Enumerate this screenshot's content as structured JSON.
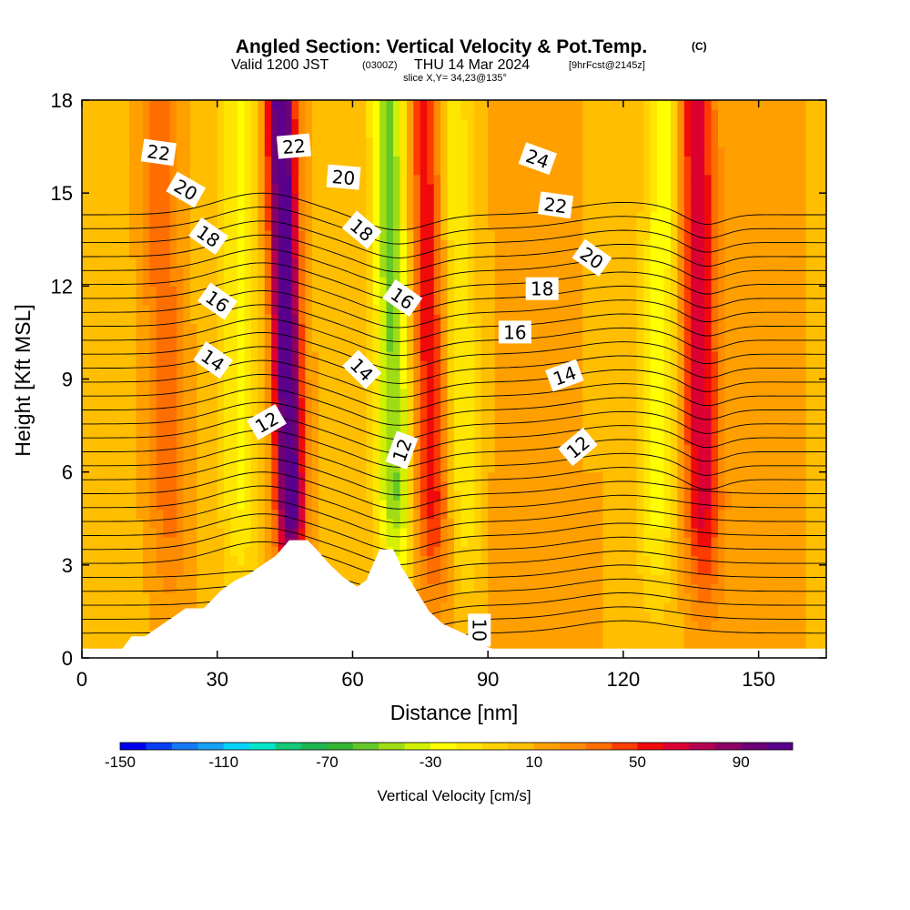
{
  "chart_data": {
    "type": "heatmap",
    "title_main": "Angled Section: Vertical Velocity & Pot.Temp.",
    "title_copyright": "(C)",
    "subtitle_parts": [
      "Valid 1200 JST",
      "(0300Z)",
      "THU 14 Mar 2024",
      "[9hrFcst@2145z]"
    ],
    "slice_text": "slice X,Y= 34,23@135°",
    "xlabel": "Distance [nm]",
    "ylabel": "Height [Kft MSL]",
    "xlim": [
      0,
      165
    ],
    "ylim": [
      0,
      18
    ],
    "x_ticks": [
      0,
      30,
      60,
      90,
      120,
      150
    ],
    "y_ticks": [
      0,
      3,
      6,
      9,
      12,
      15,
      18
    ],
    "colorbar": {
      "title": "Vertical Velocity [cm/s]",
      "min": -150,
      "max": 110,
      "tick_labels": [
        -150,
        -110,
        -70,
        -30,
        10,
        50,
        90
      ],
      "colors": [
        "#0000ee",
        "#0a3cf5",
        "#1478f5",
        "#14a0f5",
        "#00d2fa",
        "#00e6c8",
        "#14c878",
        "#1eb450",
        "#32b432",
        "#64c828",
        "#a0dc14",
        "#d2f000",
        "#ffff00",
        "#ffe600",
        "#ffd200",
        "#ffbe00",
        "#ffa000",
        "#ff8c00",
        "#ff6e00",
        "#ff3c00",
        "#f00a0a",
        "#dc0032",
        "#b40050",
        "#8c0064",
        "#6e0078",
        "#5a008c"
      ]
    },
    "updraft_bands": [
      {
        "x_bottom": 47,
        "x_top": 44,
        "peak": 110
      },
      {
        "x_bottom": 78,
        "x_top": 76,
        "peak": 50
      },
      {
        "x_bottom": 138,
        "x_top": 136,
        "peak": 60
      },
      {
        "x_bottom": 20,
        "x_top": 17,
        "peak": 30
      }
    ],
    "downdraft_bands": [
      {
        "x_bottom": 70,
        "x_top": 68,
        "peak": -60
      },
      {
        "x_bottom": 35,
        "x_top": 35,
        "peak": -30
      },
      {
        "x_bottom": 86,
        "x_top": 82,
        "peak": -30
      },
      {
        "x_bottom": 127,
        "x_top": 129,
        "peak": -35
      }
    ],
    "terrain_profile": [
      [
        0,
        0.3
      ],
      [
        9,
        0.3
      ],
      [
        11,
        0.7
      ],
      [
        14,
        0.7
      ],
      [
        17,
        1.0
      ],
      [
        20,
        1.3
      ],
      [
        23,
        1.6
      ],
      [
        27,
        1.6
      ],
      [
        29,
        1.9
      ],
      [
        31,
        2.2
      ],
      [
        34,
        2.5
      ],
      [
        37,
        2.7
      ],
      [
        40,
        3.0
      ],
      [
        43,
        3.3
      ],
      [
        46,
        3.8
      ],
      [
        50,
        3.8
      ],
      [
        52,
        3.5
      ],
      [
        55,
        3.0
      ],
      [
        58,
        2.6
      ],
      [
        61,
        2.3
      ],
      [
        63,
        2.5
      ],
      [
        66,
        3.5
      ],
      [
        69,
        3.5
      ],
      [
        71,
        2.9
      ],
      [
        74,
        2.2
      ],
      [
        77,
        1.5
      ],
      [
        80,
        1.1
      ],
      [
        83,
        0.9
      ],
      [
        86,
        0.7
      ],
      [
        89,
        0.4
      ],
      [
        91,
        0.3
      ],
      [
        165,
        0.3
      ]
    ],
    "isentropes": {
      "levels": [
        10,
        10.5,
        11,
        11.5,
        12,
        12.5,
        13,
        13.5,
        14,
        14.5,
        15,
        15.5,
        16,
        16.5,
        17,
        17.5,
        18,
        18.5,
        19,
        19.5,
        20,
        20.5,
        21,
        21.5,
        22,
        22.5,
        23,
        23.5,
        24,
        24.5,
        25
      ],
      "labels": [
        {
          "text": "22",
          "x": 17,
          "y": 16.3,
          "angle": 8
        },
        {
          "text": "20",
          "x": 23,
          "y": 15.1,
          "angle": 30
        },
        {
          "text": "18",
          "x": 28,
          "y": 13.6,
          "angle": 35
        },
        {
          "text": "16",
          "x": 30,
          "y": 11.5,
          "angle": 35
        },
        {
          "text": "14",
          "x": 29,
          "y": 9.6,
          "angle": 35
        },
        {
          "text": "12",
          "x": 41,
          "y": 7.6,
          "angle": -30
        },
        {
          "text": "22",
          "x": 47,
          "y": 16.5,
          "angle": -5
        },
        {
          "text": "20",
          "x": 58,
          "y": 15.5,
          "angle": 5
        },
        {
          "text": "18",
          "x": 62,
          "y": 13.8,
          "angle": 40
        },
        {
          "text": "14",
          "x": 62,
          "y": 9.3,
          "angle": 45
        },
        {
          "text": "16",
          "x": 71,
          "y": 11.6,
          "angle": 35
        },
        {
          "text": "12",
          "x": 71,
          "y": 6.7,
          "angle": -70
        },
        {
          "text": "24",
          "x": 101,
          "y": 16.1,
          "angle": 20
        },
        {
          "text": "22",
          "x": 105,
          "y": 14.6,
          "angle": 8
        },
        {
          "text": "20",
          "x": 113,
          "y": 12.9,
          "angle": 35
        },
        {
          "text": "18",
          "x": 102,
          "y": 11.9,
          "angle": 0
        },
        {
          "text": "16",
          "x": 96,
          "y": 10.5,
          "angle": 0
        },
        {
          "text": "14",
          "x": 107,
          "y": 9.1,
          "angle": -20
        },
        {
          "text": "12",
          "x": 110,
          "y": 6.8,
          "angle": -40
        },
        {
          "text": "10",
          "x": 88,
          "y": 0.9,
          "angle": 90
        }
      ]
    }
  }
}
